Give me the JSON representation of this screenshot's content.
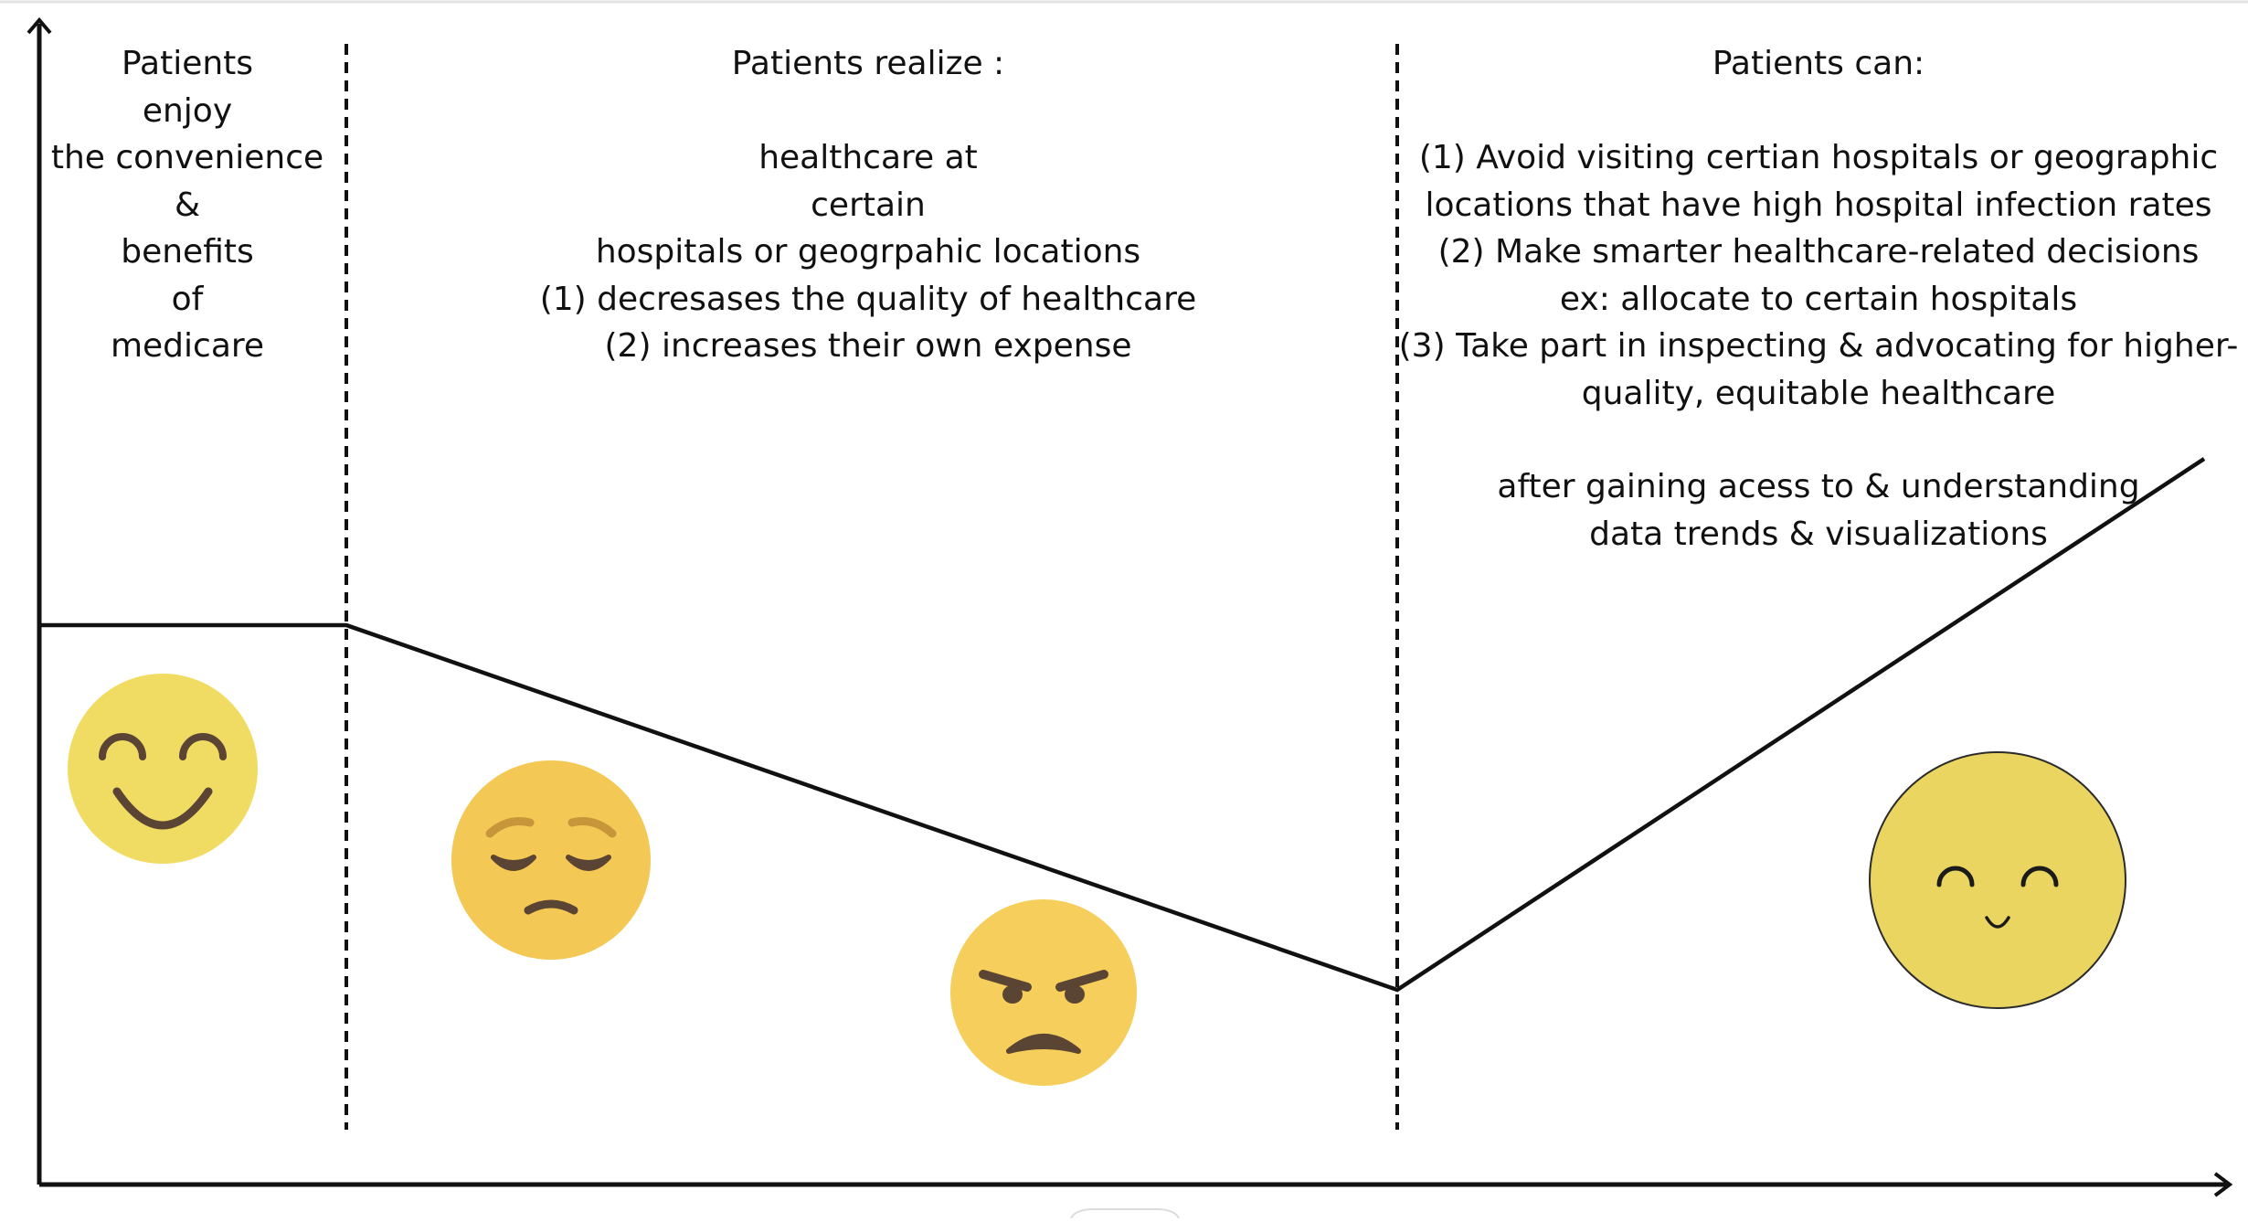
{
  "phases": [
    {
      "id": "enjoy",
      "lines": [
        "Patients",
        "enjoy",
        "the convenience",
        "&",
        "benefits",
        "of",
        "medicare"
      ],
      "emoji": "smiling-face"
    },
    {
      "id": "realize",
      "lines": [
        "Patients realize :",
        "",
        "healthcare at",
        "certain",
        "hospitals or geogrpahic locations",
        "(1) decresases the quality of healthcare",
        "(2) increases their own expense"
      ],
      "emoji": [
        "pensive-face",
        "angry-face"
      ]
    },
    {
      "id": "can",
      "lines": [
        "Patients can:",
        "",
        "(1) Avoid visiting certian hospitals or geographic",
        "locations that have high hospital infection rates",
        "(2) Make smarter healthcare-related decisions",
        "ex: allocate to certain hospitals",
        "(3) Take part in inspecting & advocating for higher-",
        "quality, equitable healthcare"
      ],
      "emoji": "content-smiling-face"
    }
  ],
  "note": {
    "lines": [
      "after gaining acess to & understanding",
      "data trends & visualizations"
    ]
  },
  "colors": {
    "face_yellow_1": "#F1DC63",
    "face_yellow_2": "#F3C854",
    "face_yellow_3": "#F6CE5B",
    "face_yellow_4": "#E9D560",
    "feature_brown": "#5A4433",
    "line": "#111111"
  }
}
